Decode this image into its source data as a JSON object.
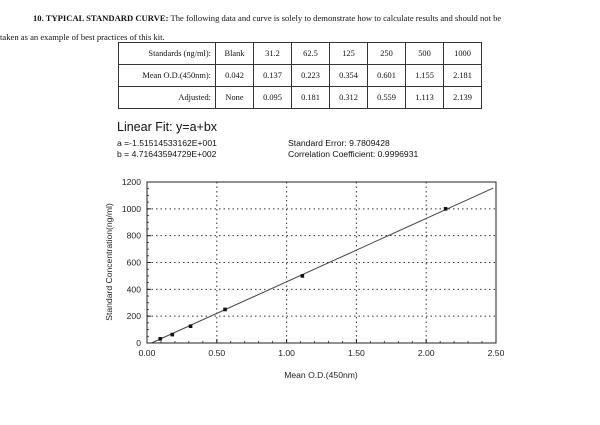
{
  "heading": {
    "number_title": "10. TYPICAL STANDARD CURVE:",
    "line1_text": " The following data and curve is solely to demonstrate how to calculate results and should not be",
    "line2_text": "taken as an example of best practices of this kit."
  },
  "table": {
    "rows": [
      {
        "label": "Standards (ng/ml):",
        "values": [
          "Blank",
          "31.2",
          "62.5",
          "125",
          "250",
          "500",
          "1000"
        ]
      },
      {
        "label": "Mean O.D.(450nm):",
        "values": [
          "0.042",
          "0.137",
          "0.223",
          "0.354",
          "0.601",
          "1.155",
          "2.181"
        ]
      },
      {
        "label": "Adjusted:",
        "values": [
          "None",
          "0.095",
          "0.181",
          "0.312",
          "0.559",
          "1.113",
          "2.139"
        ]
      }
    ]
  },
  "fit": {
    "title": "Linear Fit: y=a+bx",
    "a_text": "a =-1.51514533162E+001",
    "b_text": "b = 4.71643594729E+002",
    "std_error_text": "Standard Error: 9.7809428",
    "corr_text": "Correlation Coefficient: 0.9996931"
  },
  "chart_data": {
    "type": "scatter",
    "title": "Linear Fit: y=a+bx",
    "xlabel": "Mean O.D.(450nm)",
    "ylabel": "Standard Concentration(ng/ml)",
    "xlim": [
      0,
      2.5
    ],
    "ylim": [
      0,
      1200
    ],
    "x_ticks": [
      "0.00",
      "0.50",
      "1.00",
      "1.50",
      "2.00",
      "2.50"
    ],
    "y_ticks": [
      "0",
      "200",
      "400",
      "600",
      "800",
      "1000",
      "1200"
    ],
    "grid": true,
    "series": [
      {
        "name": "Standards",
        "x": [
          0.095,
          0.181,
          0.312,
          0.559,
          1.113,
          2.139
        ],
        "y": [
          31.2,
          62.5,
          125,
          250,
          500,
          1000
        ]
      },
      {
        "name": "Linear fit",
        "type": "line",
        "intercept": -15.1514533162,
        "slope": 471.643594729,
        "x_range": [
          0.03,
          2.48
        ]
      }
    ],
    "annotations": [
      "a =-1.51514533162E+001",
      "b = 4.71643594729E+002",
      "Standard Error: 9.7809428",
      "Correlation Coefficient: 0.9996931"
    ]
  }
}
